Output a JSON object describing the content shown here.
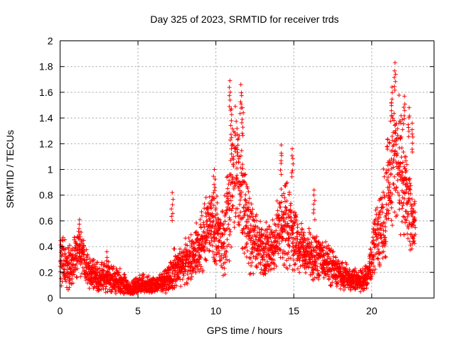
{
  "chart_data": {
    "type": "scatter",
    "title": "Day 325 of 2023, SRMTID for receiver trds",
    "xlabel": "GPS time / hours",
    "ylabel": "SRMTID / TECUs",
    "xlim": [
      0,
      24
    ],
    "ylim": [
      0,
      2
    ],
    "xticks": [
      0,
      5,
      10,
      15,
      20
    ],
    "yticks": [
      0,
      0.2,
      0.4,
      0.6,
      0.8,
      1,
      1.2,
      1.4,
      1.6,
      1.8,
      2
    ],
    "xtick_labels": [
      "0",
      "5",
      "10",
      "15",
      "20"
    ],
    "ytick_labels": [
      "0",
      "0.2",
      "0.4",
      "0.6",
      "0.8",
      "1",
      "1.2",
      "1.4",
      "1.6",
      "1.8",
      "2"
    ],
    "grid": true,
    "marker": "+",
    "series": [
      {
        "name": "SRMTID",
        "color": "#ff0000",
        "envelope_x": [
          0,
          0.5,
          1,
          1.3,
          1.8,
          2.5,
          3,
          3.5,
          4,
          4.3,
          4.6,
          5,
          5.5,
          6,
          6.5,
          7,
          7.3,
          7.8,
          8.3,
          8.8,
          9.3,
          9.7,
          10,
          10.3,
          10.6,
          10.9,
          11.2,
          11.6,
          11.9,
          12.2,
          12.6,
          13,
          13.4,
          13.8,
          14.2,
          14.6,
          15,
          15.4,
          15.8,
          16.3,
          16.8,
          17.3,
          17.8,
          18.3,
          18.8,
          19.2,
          19.6,
          20,
          20.3,
          20.7,
          21,
          21.3,
          21.6,
          21.9,
          22.2,
          22.5,
          22.8
        ],
        "envelope_y": [
          0.3,
          0.24,
          0.32,
          0.35,
          0.22,
          0.16,
          0.17,
          0.14,
          0.12,
          0.08,
          0.07,
          0.11,
          0.1,
          0.09,
          0.11,
          0.15,
          0.22,
          0.24,
          0.32,
          0.38,
          0.48,
          0.62,
          0.55,
          0.4,
          0.48,
          0.78,
          1.0,
          0.85,
          0.7,
          0.5,
          0.42,
          0.38,
          0.35,
          0.42,
          0.6,
          0.58,
          0.48,
          0.38,
          0.36,
          0.32,
          0.3,
          0.26,
          0.2,
          0.17,
          0.14,
          0.13,
          0.15,
          0.28,
          0.48,
          0.58,
          0.8,
          1.05,
          1.15,
          0.95,
          0.85,
          0.65,
          0.55
        ],
        "envelope_spread": [
          0.14,
          0.12,
          0.13,
          0.14,
          0.1,
          0.09,
          0.09,
          0.08,
          0.07,
          0.05,
          0.05,
          0.06,
          0.06,
          0.05,
          0.06,
          0.08,
          0.12,
          0.12,
          0.14,
          0.16,
          0.2,
          0.22,
          0.22,
          0.2,
          0.25,
          0.35,
          0.4,
          0.38,
          0.3,
          0.22,
          0.18,
          0.17,
          0.16,
          0.18,
          0.25,
          0.25,
          0.2,
          0.16,
          0.15,
          0.13,
          0.12,
          0.11,
          0.09,
          0.08,
          0.07,
          0.06,
          0.07,
          0.12,
          0.2,
          0.25,
          0.35,
          0.4,
          0.4,
          0.35,
          0.3,
          0.22,
          0.18
        ],
        "peaks": [
          {
            "x": 1.25,
            "y": 0.61
          },
          {
            "x": 3.0,
            "y": 0.36
          },
          {
            "x": 7.2,
            "y": 0.82
          },
          {
            "x": 9.9,
            "y": 1.0
          },
          {
            "x": 10.9,
            "y": 1.69
          },
          {
            "x": 11.6,
            "y": 1.66
          },
          {
            "x": 11.7,
            "y": 1.48
          },
          {
            "x": 11.0,
            "y": 1.47
          },
          {
            "x": 14.2,
            "y": 1.19
          },
          {
            "x": 14.9,
            "y": 1.16
          },
          {
            "x": 16.3,
            "y": 0.84
          },
          {
            "x": 21.5,
            "y": 1.83
          },
          {
            "x": 21.3,
            "y": 1.64
          },
          {
            "x": 22.1,
            "y": 1.57
          },
          {
            "x": 22.6,
            "y": 1.36
          },
          {
            "x": 22.4,
            "y": 1.48
          }
        ]
      }
    ]
  }
}
